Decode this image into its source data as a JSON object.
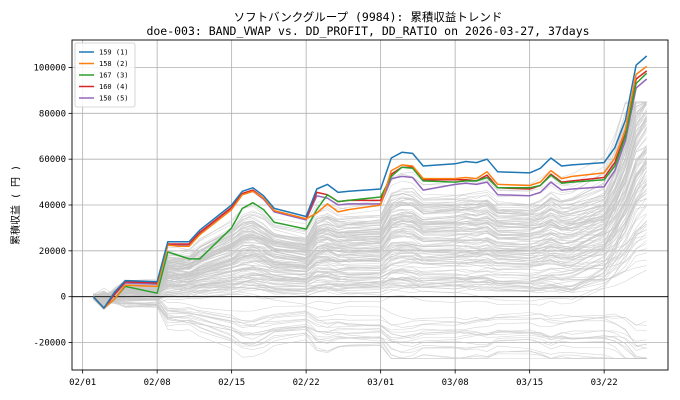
{
  "chart_data": {
    "type": "line",
    "title": "ソフトバンクグループ (9984): 累積収益トレンド",
    "subtitle": "doe-003: BAND_VWAP vs. DD_PROFIT, DD_RATIO on 2026-03-27, 37days",
    "xlabel": "",
    "ylabel": "累積収益 ( 円 )",
    "grid": true,
    "legend_position": "top-left",
    "x_tick_labels": [
      "02/01",
      "02/08",
      "02/15",
      "02/22",
      "03/01",
      "03/08",
      "03/15",
      "03/22"
    ],
    "x_tick_days": [
      0,
      7,
      14,
      21,
      28,
      35,
      42,
      49
    ],
    "xlim": [
      -1.0,
      55.0
    ],
    "ylim": [
      -32000,
      112000
    ],
    "y_ticks": [
      -20000,
      0,
      20000,
      40000,
      60000,
      80000,
      100000
    ],
    "y_tick_labels": [
      "-20000",
      "0",
      "20000",
      "40000",
      "60000",
      "80000",
      "100000"
    ],
    "zero_line": 0,
    "x_days": [
      1,
      2,
      3,
      4,
      7,
      8,
      9,
      10,
      11,
      14,
      15,
      16,
      17,
      18,
      21,
      22,
      23,
      24,
      25,
      28,
      29,
      30,
      31,
      32,
      35,
      36,
      37,
      38,
      39,
      42,
      43,
      44,
      45,
      46,
      49,
      50,
      51,
      52,
      53
    ],
    "series": [
      {
        "name": "159 (1)",
        "color": "#1f77b4",
        "values": [
          0,
          -5000,
          2000,
          7000,
          6500,
          24000,
          24000,
          24000,
          29000,
          40000,
          46000,
          47500,
          44000,
          38500,
          35000,
          47000,
          49000,
          45500,
          46000,
          47000,
          60500,
          63000,
          62500,
          57000,
          58000,
          59000,
          58500,
          60000,
          54500,
          54000,
          56000,
          60500,
          57000,
          57500,
          58500,
          65000,
          77000,
          101000,
          105000
        ]
      },
      {
        "name": "158 (2)",
        "color": "#ff7f0e",
        "values": [
          0,
          -5000,
          -1000,
          5000,
          4500,
          22500,
          22000,
          22000,
          27000,
          38000,
          44500,
          46000,
          43000,
          37500,
          34000,
          36500,
          40500,
          37000,
          38000,
          40000,
          55000,
          57500,
          57000,
          51500,
          51500,
          52000,
          51500,
          54500,
          49000,
          48500,
          50000,
          55000,
          51500,
          52500,
          54000,
          60500,
          73000,
          97000,
          100500
        ]
      },
      {
        "name": "167 (3)",
        "color": "#2ca02c",
        "values": [
          0,
          -5000,
          -1000,
          4500,
          1500,
          19500,
          18000,
          16500,
          16500,
          30000,
          38500,
          41000,
          38000,
          32500,
          29500,
          38000,
          44500,
          41500,
          42000,
          43500,
          52500,
          56500,
          56000,
          50500,
          50000,
          50500,
          50500,
          52000,
          47500,
          47500,
          48500,
          53000,
          49500,
          50000,
          51000,
          57000,
          70000,
          93000,
          97500
        ]
      },
      {
        "name": "160 (4)",
        "color": "#d62728",
        "values": [
          0,
          -5000,
          1000,
          6500,
          6000,
          23000,
          23000,
          23000,
          28000,
          39000,
          45000,
          46500,
          43000,
          37500,
          34000,
          45500,
          44500,
          41500,
          42000,
          42000,
          53500,
          56500,
          56500,
          51000,
          51000,
          51000,
          50500,
          53000,
          47500,
          47000,
          48500,
          53500,
          50000,
          50500,
          52000,
          58500,
          71000,
          95000,
          98500
        ]
      },
      {
        "name": "150 (5)",
        "color": "#9467bd",
        "values": [
          0,
          -5000,
          1000,
          6000,
          5500,
          22500,
          22500,
          22500,
          27500,
          38500,
          44500,
          46000,
          42500,
          37000,
          33500,
          44000,
          43000,
          40000,
          40500,
          40500,
          51500,
          52500,
          52000,
          46500,
          49000,
          49500,
          49000,
          50000,
          44500,
          44000,
          45500,
          50000,
          46500,
          47000,
          48000,
          55000,
          68000,
          91000,
          95000
        ]
      }
    ],
    "background_series_count": 150,
    "background_series_color": "#c8c8c8",
    "background_series_note": "many faint grey comparison lines spanning roughly -25000 to 80000"
  }
}
